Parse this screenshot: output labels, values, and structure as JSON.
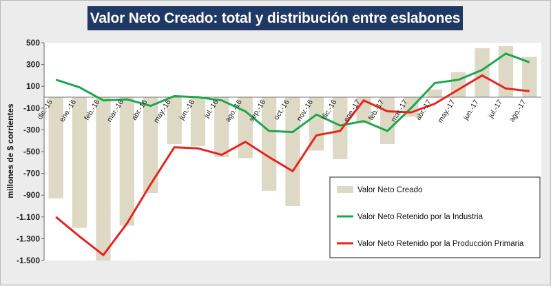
{
  "chart_data": {
    "type": "bar",
    "title": "Valor Neto Creado: total y distribución entre eslabones",
    "ylabel": "millones de $ corrientes",
    "xlabel": "",
    "ylim": [
      -1500,
      500
    ],
    "yticks": [
      500,
      300,
      100,
      -100,
      -300,
      -500,
      -700,
      -900,
      -1100,
      -1300,
      -1500
    ],
    "ytick_labels": [
      "500",
      "300",
      "100",
      "-100",
      "-300",
      "-500",
      "-700",
      "-900",
      "-1.100",
      "-1.300",
      "-1.500"
    ],
    "categories": [
      "dic.-15",
      "ene.-16",
      "feb.-16",
      "mar.-16",
      "abr.-16",
      "may.-16",
      "jun.-16",
      "jul.-16",
      "ago.-16",
      "sep.-16",
      "oct.-16",
      "nov.-16",
      "dic.-16",
      "ene.-17",
      "feb.-17",
      "mar.-17",
      "abr.-17",
      "may.-17",
      "jun.-17",
      "jul.-17",
      "ago.-17"
    ],
    "series": [
      {
        "name": "Valor Neto Creado",
        "kind": "bar",
        "color": "#ddd9c4",
        "values": [
          -930,
          -1200,
          -1520,
          -1180,
          -880,
          -430,
          -450,
          -550,
          -560,
          -860,
          -1000,
          -490,
          -570,
          -240,
          -430,
          -180,
          70,
          230,
          450,
          470,
          370
        ]
      },
      {
        "name": "Valor Neto Retenido por la Industria",
        "kind": "line",
        "color": "#1aa84a",
        "values": [
          160,
          90,
          -30,
          -20,
          -80,
          10,
          0,
          -30,
          -130,
          -310,
          -320,
          -160,
          -260,
          -220,
          -310,
          -100,
          130,
          160,
          250,
          400,
          320
        ]
      },
      {
        "name": "Valor Neto Retenido por la Producción Primaria",
        "kind": "line",
        "color": "#e8231d",
        "values": [
          -1100,
          -1280,
          -1450,
          -1160,
          -800,
          -460,
          -470,
          -530,
          -410,
          -550,
          -680,
          -350,
          -310,
          -30,
          -130,
          -140,
          -60,
          70,
          200,
          80,
          55
        ]
      }
    ],
    "legend_position": "bottom-right"
  }
}
